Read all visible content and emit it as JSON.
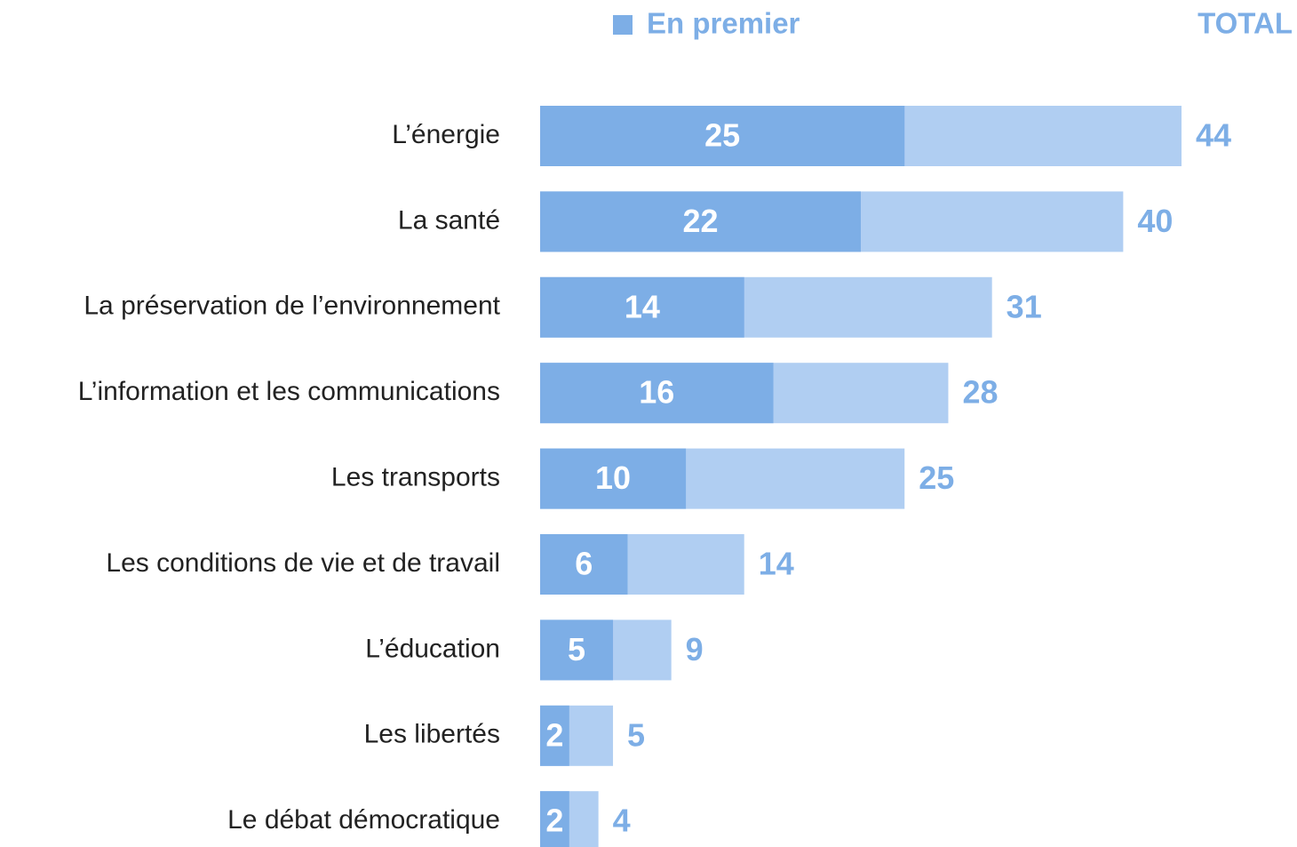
{
  "chart_data": {
    "type": "bar",
    "orientation": "horizontal",
    "overlap": true,
    "categories": [
      "L’énergie",
      "La santé",
      "La préservation de l’environnement",
      "L’information et les communications",
      "Les transports",
      "Les conditions de vie et de travail",
      "L’éducation",
      "Les libertés",
      "Le débat démocratique"
    ],
    "series": [
      {
        "name": "En premier",
        "color": "#7daee6",
        "values": [
          25,
          22,
          14,
          16,
          10,
          6,
          5,
          2,
          2
        ]
      },
      {
        "name": "TOTAL",
        "color": "#b0cef2",
        "values": [
          44,
          40,
          31,
          28,
          25,
          14,
          9,
          5,
          4
        ]
      }
    ]
  }
}
